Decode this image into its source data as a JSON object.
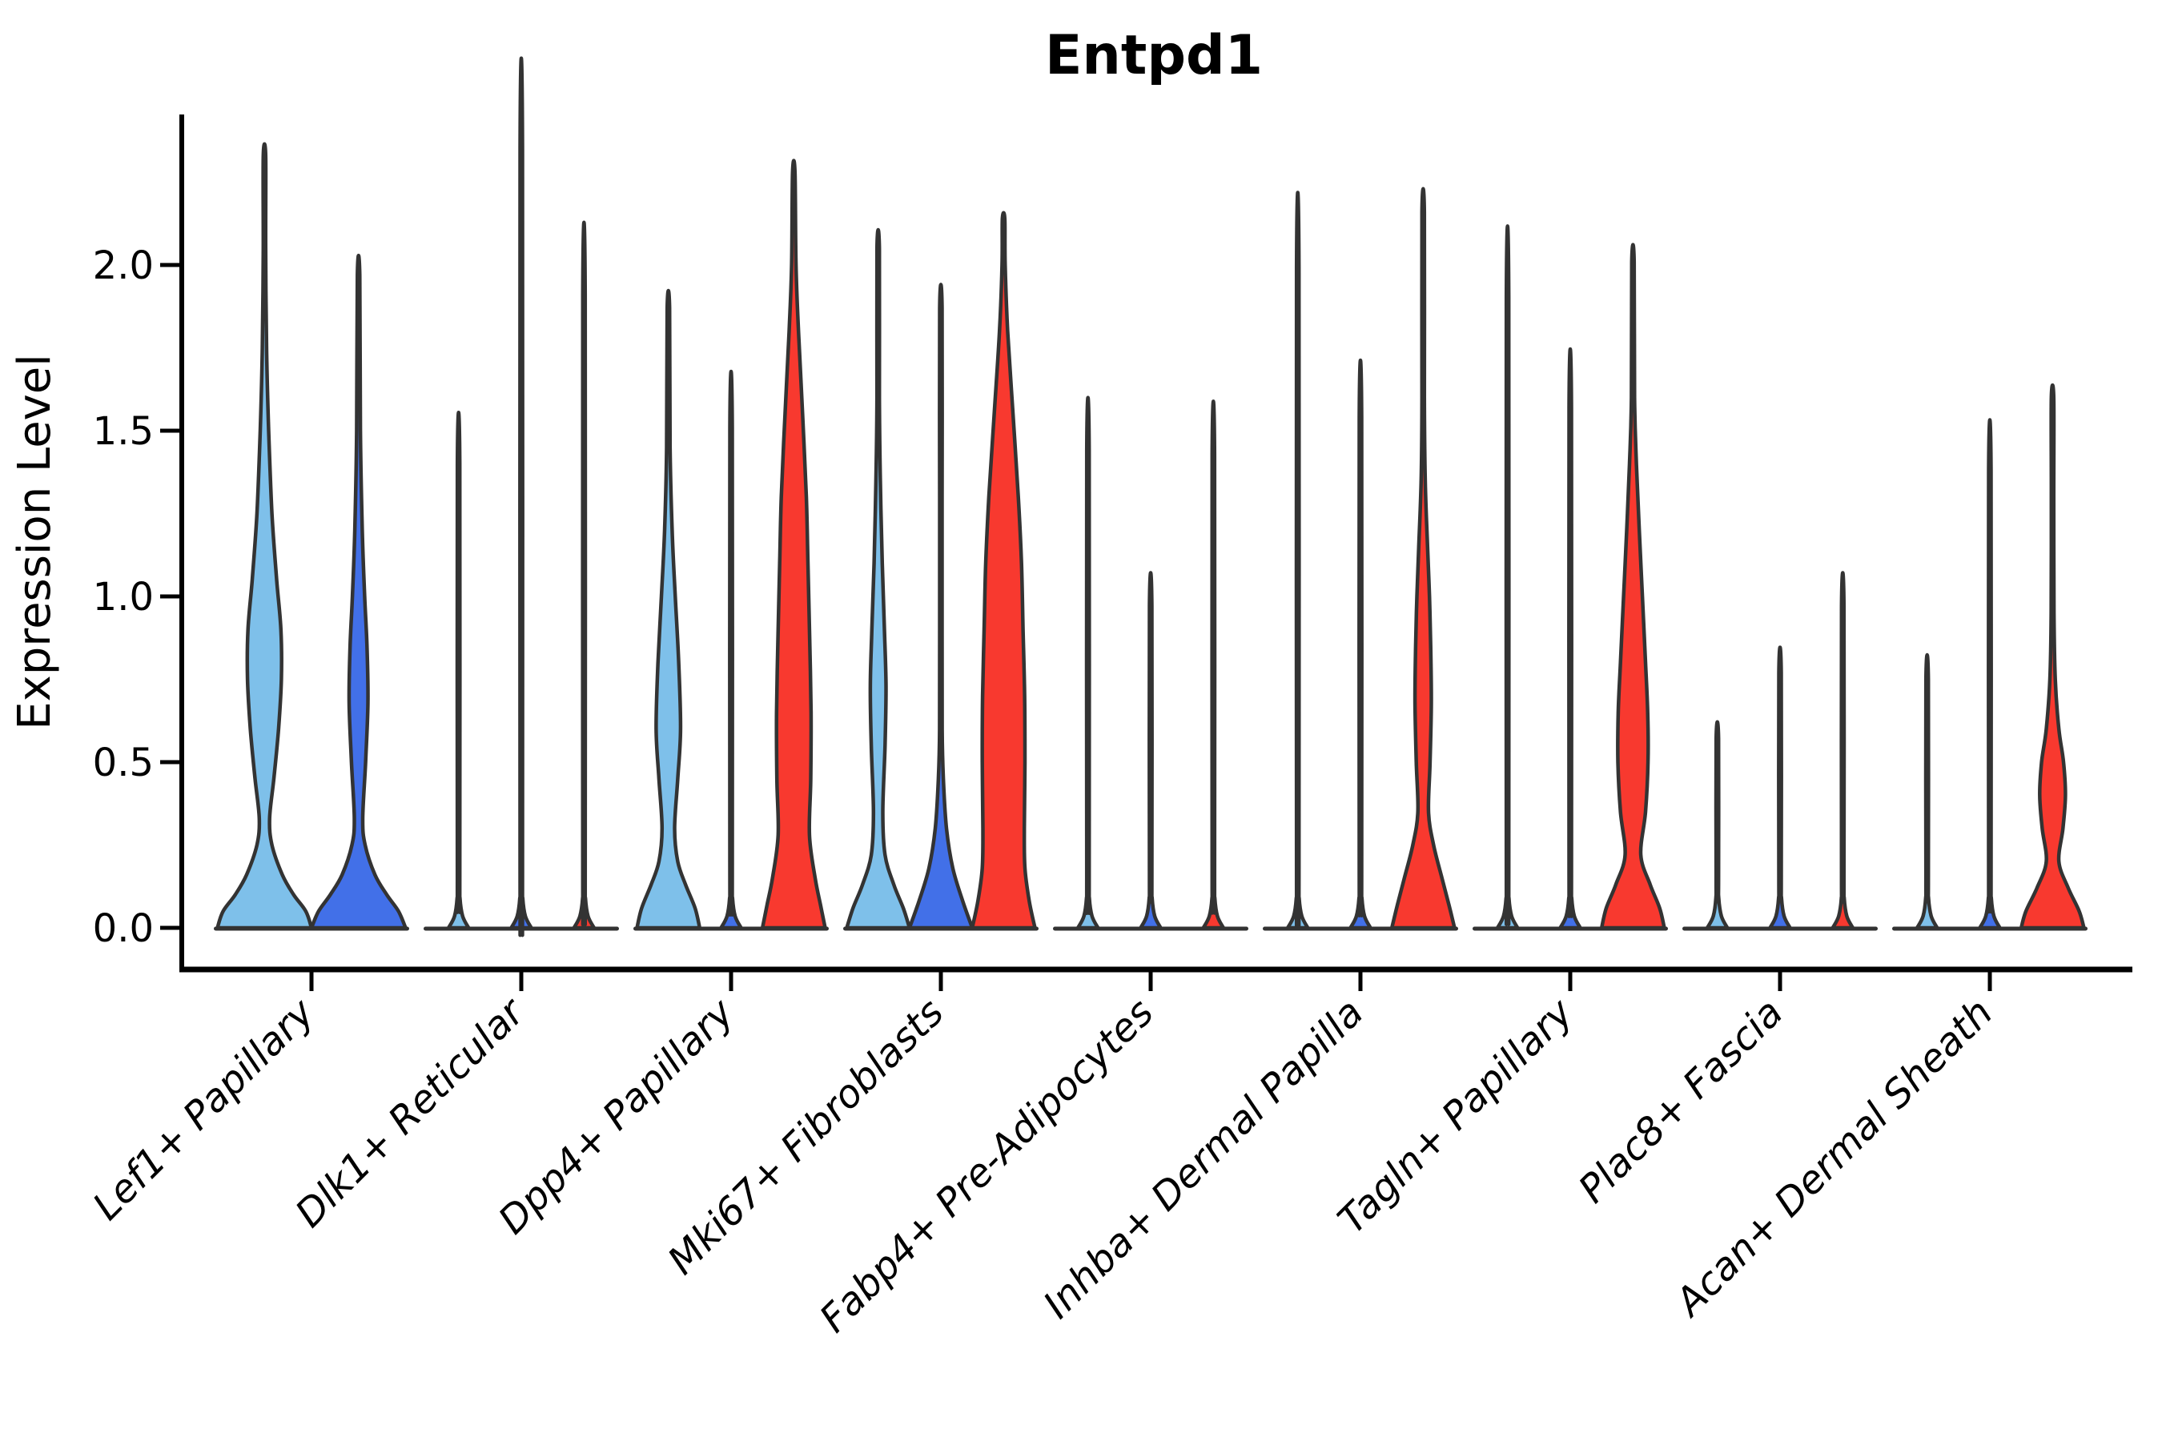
{
  "chart_data": {
    "type": "violin",
    "title": "Entpd1",
    "ylabel": "Expression Level",
    "ylim": [
      0,
      2.45
    ],
    "yticks": [
      0.0,
      0.5,
      1.0,
      1.5,
      2.0
    ],
    "ytick_labels": [
      "0.0",
      "0.5",
      "1.0",
      "1.5",
      "2.0"
    ],
    "grid": false,
    "legend": "none",
    "xlabel_rotation_deg": 45,
    "palette": {
      "skyblue": "#7EC0EA",
      "royalblue": "#4270E8",
      "red": "#F8392F"
    },
    "stroke_color": "#333333",
    "groups": [
      {
        "category": "Lef1+ Papillary",
        "violins": [
          {
            "color": "skyblue",
            "shape": "body",
            "max": 2.33,
            "profile": [
              [
                0,
                1.0
              ],
              [
                0.05,
                0.88
              ],
              [
                0.1,
                0.62
              ],
              [
                0.16,
                0.38
              ],
              [
                0.25,
                0.16
              ],
              [
                0.33,
                0.11
              ],
              [
                0.45,
                0.2
              ],
              [
                0.6,
                0.3
              ],
              [
                0.75,
                0.36
              ],
              [
                0.9,
                0.35
              ],
              [
                1.05,
                0.26
              ],
              [
                1.25,
                0.16
              ],
              [
                1.5,
                0.09
              ],
              [
                1.75,
                0.045
              ],
              [
                2.05,
                0.025
              ],
              [
                2.33,
                0.018
              ]
            ]
          },
          {
            "color": "royalblue",
            "shape": "body",
            "max": 1.97,
            "profile": [
              [
                0,
                1.0
              ],
              [
                0.05,
                0.85
              ],
              [
                0.1,
                0.6
              ],
              [
                0.16,
                0.35
              ],
              [
                0.25,
                0.14
              ],
              [
                0.33,
                0.09
              ],
              [
                0.5,
                0.15
              ],
              [
                0.68,
                0.2
              ],
              [
                0.85,
                0.18
              ],
              [
                1.0,
                0.13
              ],
              [
                1.2,
                0.08
              ],
              [
                1.5,
                0.04
              ],
              [
                1.97,
                0.016
              ]
            ]
          }
        ]
      },
      {
        "category": "Dlk1+ Reticular",
        "violins": [
          {
            "color": "skyblue",
            "shape": "spike",
            "max": 1.4
          },
          {
            "color": "royalblue",
            "shape": "spike",
            "max": 2.35
          },
          {
            "color": "red",
            "shape": "spike",
            "max": 1.91
          }
        ]
      },
      {
        "category": "Dpp4+ Papillary",
        "violins": [
          {
            "color": "skyblue",
            "shape": "body",
            "max": 1.87,
            "profile": [
              [
                0,
                1.0
              ],
              [
                0.06,
                0.85
              ],
              [
                0.13,
                0.55
              ],
              [
                0.2,
                0.3
              ],
              [
                0.3,
                0.2
              ],
              [
                0.45,
                0.3
              ],
              [
                0.6,
                0.39
              ],
              [
                0.8,
                0.33
              ],
              [
                1.0,
                0.22
              ],
              [
                1.2,
                0.12
              ],
              [
                1.45,
                0.055
              ],
              [
                1.87,
                0.016
              ]
            ]
          },
          {
            "color": "royalblue",
            "shape": "spike",
            "max": 1.51
          },
          {
            "color": "red",
            "shape": "body",
            "max": 2.28,
            "profile": [
              [
                0,
                1.0
              ],
              [
                0.07,
                0.85
              ],
              [
                0.15,
                0.68
              ],
              [
                0.28,
                0.5
              ],
              [
                0.45,
                0.54
              ],
              [
                0.65,
                0.55
              ],
              [
                0.9,
                0.5
              ],
              [
                1.1,
                0.45
              ],
              [
                1.3,
                0.4
              ],
              [
                1.55,
                0.28
              ],
              [
                1.8,
                0.15
              ],
              [
                2.0,
                0.07
              ],
              [
                2.28,
                0.016
              ]
            ]
          }
        ]
      },
      {
        "category": "Mki67+ Fibroblasts",
        "violins": [
          {
            "color": "skyblue",
            "shape": "body",
            "max": 2.05,
            "profile": [
              [
                0,
                1.0
              ],
              [
                0.06,
                0.8
              ],
              [
                0.13,
                0.5
              ],
              [
                0.22,
                0.22
              ],
              [
                0.35,
                0.15
              ],
              [
                0.55,
                0.22
              ],
              [
                0.73,
                0.25
              ],
              [
                0.9,
                0.2
              ],
              [
                1.1,
                0.13
              ],
              [
                1.35,
                0.07
              ],
              [
                1.6,
                0.035
              ],
              [
                2.05,
                0.014
              ]
            ]
          },
          {
            "color": "royalblue",
            "shape": "body",
            "max": 1.87,
            "profile": [
              [
                0,
                1.0
              ],
              [
                0.08,
                0.7
              ],
              [
                0.18,
                0.38
              ],
              [
                0.3,
                0.18
              ],
              [
                0.45,
                0.08
              ],
              [
                0.6,
                0.04
              ],
              [
                0.9,
                0.025
              ],
              [
                1.3,
                0.018
              ],
              [
                1.87,
                0.014
              ]
            ]
          },
          {
            "color": "red",
            "shape": "body",
            "max": 2.14,
            "profile": [
              [
                0,
                1.0
              ],
              [
                0.08,
                0.82
              ],
              [
                0.18,
                0.68
              ],
              [
                0.3,
                0.66
              ],
              [
                0.5,
                0.68
              ],
              [
                0.7,
                0.67
              ],
              [
                0.9,
                0.62
              ],
              [
                1.1,
                0.57
              ],
              [
                1.3,
                0.47
              ],
              [
                1.55,
                0.3
              ],
              [
                1.8,
                0.13
              ],
              [
                2.0,
                0.05
              ],
              [
                2.14,
                0.016
              ]
            ]
          }
        ]
      },
      {
        "category": "Fabp4+ Pre-Adipocytes",
        "violins": [
          {
            "color": "skyblue",
            "shape": "spike",
            "max": 1.44
          },
          {
            "color": "royalblue",
            "shape": "spike",
            "max": 0.97
          },
          {
            "color": "red",
            "shape": "spike",
            "max": 1.43
          }
        ]
      },
      {
        "category": "Inhba+ Dermal Papilla",
        "violins": [
          {
            "color": "skyblue",
            "shape": "spike",
            "max": 1.99
          },
          {
            "color": "royalblue",
            "shape": "spike",
            "max": 1.54
          },
          {
            "color": "red",
            "shape": "body",
            "max": 2.16,
            "profile": [
              [
                0,
                1.0
              ],
              [
                0.07,
                0.82
              ],
              [
                0.15,
                0.6
              ],
              [
                0.25,
                0.33
              ],
              [
                0.35,
                0.17
              ],
              [
                0.5,
                0.22
              ],
              [
                0.68,
                0.26
              ],
              [
                0.85,
                0.24
              ],
              [
                1.0,
                0.2
              ],
              [
                1.15,
                0.14
              ],
              [
                1.35,
                0.065
              ],
              [
                1.6,
                0.03
              ],
              [
                2.16,
                0.014
              ]
            ]
          }
        ]
      },
      {
        "category": "Tagln+ Papillary",
        "violins": [
          {
            "color": "skyblue",
            "shape": "spike",
            "max": 1.9
          },
          {
            "color": "royalblue",
            "shape": "spike",
            "max": 1.57
          },
          {
            "color": "red",
            "shape": "body",
            "max": 2.01,
            "profile": [
              [
                0,
                1.0
              ],
              [
                0.06,
                0.85
              ],
              [
                0.13,
                0.55
              ],
              [
                0.22,
                0.25
              ],
              [
                0.35,
                0.4
              ],
              [
                0.5,
                0.48
              ],
              [
                0.65,
                0.47
              ],
              [
                0.8,
                0.4
              ],
              [
                1.0,
                0.3
              ],
              [
                1.2,
                0.2
              ],
              [
                1.4,
                0.11
              ],
              [
                1.6,
                0.05
              ],
              [
                2.01,
                0.015
              ]
            ]
          }
        ]
      },
      {
        "category": "Plac8+ Fascia",
        "violins": [
          {
            "color": "skyblue",
            "shape": "spike",
            "max": 0.57
          },
          {
            "color": "royalblue",
            "shape": "spike",
            "max": 0.77
          },
          {
            "color": "red",
            "shape": "spike",
            "max": 0.97
          }
        ]
      },
      {
        "category": "Acan+ Dermal Sheath",
        "violins": [
          {
            "color": "skyblue",
            "shape": "spike",
            "max": 0.75
          },
          {
            "color": "royalblue",
            "shape": "spike",
            "max": 1.38
          },
          {
            "color": "red",
            "shape": "body",
            "max": 1.6,
            "profile": [
              [
                0,
                1.0
              ],
              [
                0.05,
                0.85
              ],
              [
                0.12,
                0.5
              ],
              [
                0.2,
                0.2
              ],
              [
                0.3,
                0.33
              ],
              [
                0.4,
                0.41
              ],
              [
                0.5,
                0.35
              ],
              [
                0.6,
                0.2
              ],
              [
                0.75,
                0.085
              ],
              [
                0.95,
                0.045
              ],
              [
                1.3,
                0.022
              ],
              [
                1.6,
                0.015
              ]
            ]
          }
        ]
      }
    ]
  }
}
